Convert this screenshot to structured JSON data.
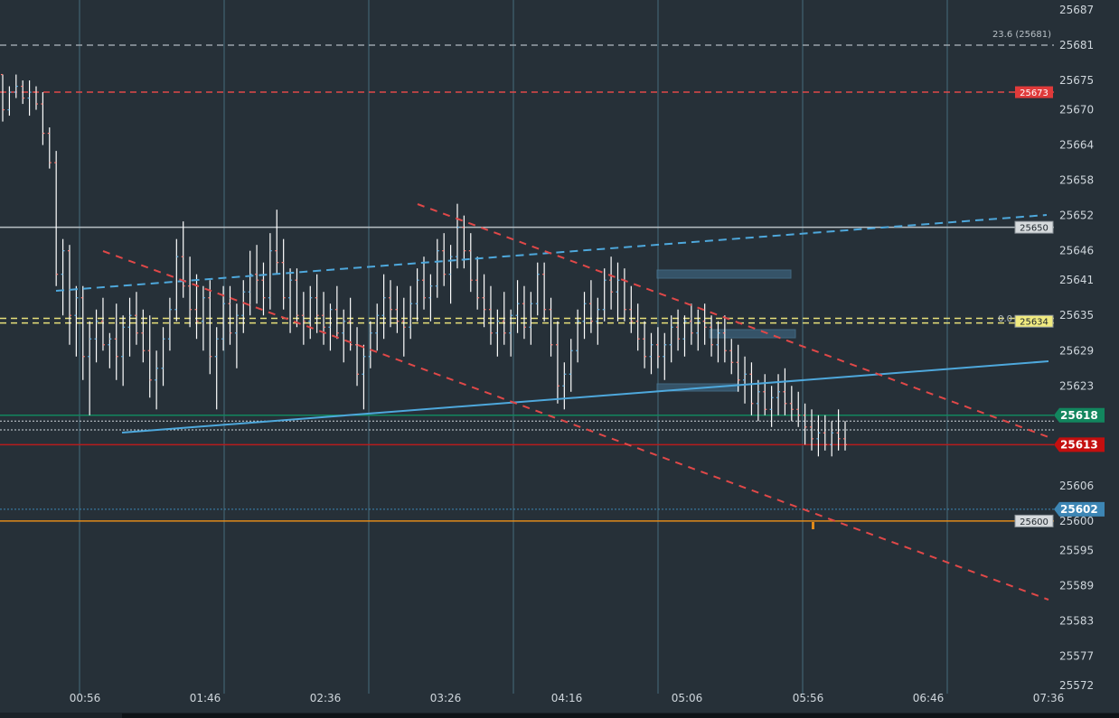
{
  "chart_data": {
    "type": "candlestick",
    "y_ticks": [
      "25687",
      "25681",
      "25675",
      "25670",
      "25664",
      "25658",
      "25652",
      "25646",
      "25641",
      "25635",
      "25629",
      "25623",
      "25618",
      "25613",
      "25606",
      "25602",
      "25600",
      "25595",
      "25589",
      "25583",
      "25577",
      "25572"
    ],
    "y_range": [
      25572,
      25687
    ],
    "x_ticks": [
      "00:56",
      "01:46",
      "02:36",
      "03:26",
      "04:16",
      "05:06",
      "05:56",
      "06:46",
      "07:36"
    ],
    "grid": "vertical only",
    "price_labels": [
      {
        "name": "resistance-label",
        "value": "25673",
        "color": "#e03a3a"
      },
      {
        "name": "level-label",
        "value": "25650",
        "color": "#d6dadd"
      },
      {
        "name": "fib-zero-label",
        "value": "25634",
        "color": "#f0ea80"
      },
      {
        "name": "bid-label",
        "value": "25618",
        "color": "#12865e"
      },
      {
        "name": "last-price-label",
        "value": "25613",
        "color": "#c40f0f"
      },
      {
        "name": "blue-level-label",
        "value": "25602",
        "color": "#3d86b5"
      },
      {
        "name": "round-level-label",
        "value": "25600",
        "color": "#d6dadd"
      }
    ],
    "fib_labels": [
      {
        "name": "fib-23-label",
        "text": "23.6 (25681)"
      },
      {
        "name": "fib-0-label",
        "text": "0.0"
      }
    ],
    "horizontal_levels": [
      {
        "price": 25681,
        "color": "#9aa3aa",
        "style": "dash"
      },
      {
        "price": 25673,
        "color": "#e04848",
        "style": "dash"
      },
      {
        "price": 25650,
        "color": "#b9c0c5",
        "style": "solid"
      },
      {
        "price": 25634.5,
        "color": "#e8e07a",
        "style": "dash"
      },
      {
        "price": 25633.7,
        "color": "#e8e07a",
        "style": "dash"
      },
      {
        "price": 25618,
        "color": "#12865e",
        "style": "solid"
      },
      {
        "price": 25617,
        "color": "#cfd6dc",
        "style": "dot"
      },
      {
        "price": 25615.5,
        "color": "#cfd6dc",
        "style": "dot"
      },
      {
        "price": 25613,
        "color": "#b71c1c",
        "style": "solid"
      },
      {
        "price": 25602,
        "color": "#3d86b5",
        "style": "dot"
      },
      {
        "price": 25600,
        "color": "#e08a1a",
        "style": "solid"
      }
    ],
    "candles": [
      [
        25676,
        25676,
        25668,
        25670
      ],
      [
        25670,
        25674,
        25669,
        25673
      ],
      [
        25673,
        25676,
        25672,
        25674
      ],
      [
        25674,
        25675,
        25671,
        25672
      ],
      [
        25672,
        25675,
        25669,
        25673
      ],
      [
        25673,
        25674,
        25670,
        25671
      ],
      [
        25671,
        25673,
        25664,
        25666
      ],
      [
        25666,
        25667,
        25660,
        25661
      ],
      [
        25661,
        25663,
        25640,
        25642
      ],
      [
        25642,
        25648,
        25635,
        25646
      ],
      [
        25646,
        25647,
        25630,
        25635
      ],
      [
        25635,
        25640,
        25628,
        25638
      ],
      [
        25638,
        25640,
        25624,
        25628
      ],
      [
        25628,
        25634,
        25618,
        25631
      ],
      [
        25631,
        25636,
        25627,
        25634
      ],
      [
        25634,
        25638,
        25629,
        25630
      ],
      [
        25630,
        25632,
        25626,
        25631
      ],
      [
        25631,
        25637,
        25624,
        25628
      ],
      [
        25628,
        25635,
        25623,
        25633
      ],
      [
        25633,
        25638,
        25628,
        25635
      ],
      [
        25635,
        25639,
        25630,
        25632
      ],
      [
        25632,
        25636,
        25627,
        25629
      ],
      [
        25629,
        25635,
        25621,
        25624
      ],
      [
        25624,
        25629,
        25619,
        25626
      ],
      [
        25626,
        25633,
        25623,
        25631
      ],
      [
        25631,
        25638,
        25629,
        25636
      ],
      [
        25636,
        25648,
        25634,
        25645
      ],
      [
        25645,
        25651,
        25638,
        25640
      ],
      [
        25640,
        25645,
        25633,
        25636
      ],
      [
        25636,
        25642,
        25631,
        25634
      ],
      [
        25634,
        25640,
        25629,
        25638
      ],
      [
        25638,
        25641,
        25625,
        25628
      ],
      [
        25628,
        25633,
        25619,
        25631
      ],
      [
        25631,
        25640,
        25629,
        25637
      ],
      [
        25637,
        25640,
        25630,
        25632
      ],
      [
        25632,
        25637,
        25626,
        25635
      ],
      [
        25635,
        25641,
        25632,
        25639
      ],
      [
        25639,
        25646,
        25635,
        25642
      ],
      [
        25642,
        25647,
        25637,
        25641
      ],
      [
        25641,
        25644,
        25635,
        25638
      ],
      [
        25638,
        25649,
        25636,
        25646
      ],
      [
        25646,
        25653,
        25642,
        25644
      ],
      [
        25644,
        25648,
        25636,
        25638
      ],
      [
        25638,
        25643,
        25632,
        25641
      ],
      [
        25641,
        25643,
        25633,
        25635
      ],
      [
        25635,
        25639,
        25630,
        25634
      ],
      [
        25634,
        25640,
        25631,
        25638
      ],
      [
        25638,
        25642,
        25632,
        25635
      ],
      [
        25635,
        25639,
        25630,
        25633
      ],
      [
        25633,
        25637,
        25629,
        25636
      ],
      [
        25636,
        25640,
        25631,
        25632
      ],
      [
        25632,
        25636,
        25627,
        25634
      ],
      [
        25634,
        25638,
        25629,
        25630
      ],
      [
        25630,
        25633,
        25623,
        25625
      ],
      [
        25625,
        25630,
        25619,
        25628
      ],
      [
        25628,
        25634,
        25626,
        25632
      ],
      [
        25632,
        25637,
        25629,
        25635
      ],
      [
        25635,
        25642,
        25631,
        25638
      ],
      [
        25638,
        25641,
        25633,
        25636
      ],
      [
        25636,
        25640,
        25632,
        25634
      ],
      [
        25634,
        25638,
        25628,
        25633
      ],
      [
        25633,
        25640,
        25631,
        25637
      ],
      [
        25637,
        25643,
        25634,
        25641
      ],
      [
        25641,
        25645,
        25636,
        25638
      ],
      [
        25638,
        25642,
        25634,
        25640
      ],
      [
        25640,
        25648,
        25638,
        25646
      ],
      [
        25646,
        25649,
        25640,
        25642
      ],
      [
        25642,
        25647,
        25637,
        25645
      ],
      [
        25645,
        25654,
        25643,
        25650
      ],
      [
        25650,
        25652,
        25643,
        25646
      ],
      [
        25646,
        25649,
        25639,
        25641
      ],
      [
        25641,
        25645,
        25636,
        25638
      ],
      [
        25638,
        25642,
        25633,
        25636
      ],
      [
        25636,
        25640,
        25630,
        25632
      ],
      [
        25632,
        25636,
        25628,
        25634
      ],
      [
        25634,
        25639,
        25630,
        25632
      ],
      [
        25632,
        25636,
        25628,
        25635
      ],
      [
        25635,
        25641,
        25632,
        25637
      ],
      [
        25637,
        25640,
        25631,
        25633
      ],
      [
        25633,
        25639,
        25630,
        25637
      ],
      [
        25637,
        25644,
        25635,
        25642
      ],
      [
        25642,
        25644,
        25634,
        25636
      ],
      [
        25636,
        25638,
        25628,
        25630
      ],
      [
        25630,
        25634,
        25620,
        25623
      ],
      [
        25623,
        25627,
        25619,
        25625
      ],
      [
        25625,
        25631,
        25622,
        25629
      ],
      [
        25629,
        25636,
        25627,
        25634
      ],
      [
        25634,
        25639,
        25631,
        25637
      ],
      [
        25637,
        25641,
        25632,
        25634
      ],
      [
        25634,
        25638,
        25630,
        25636
      ],
      [
        25636,
        25643,
        25634,
        25641
      ],
      [
        25641,
        25645,
        25636,
        25639
      ],
      [
        25639,
        25644,
        25634,
        25641
      ],
      [
        25641,
        25643,
        25634,
        25636
      ],
      [
        25636,
        25640,
        25632,
        25634
      ],
      [
        25634,
        25637,
        25629,
        25631
      ],
      [
        25631,
        25634,
        25626,
        25628
      ],
      [
        25628,
        25632,
        25625,
        25630
      ],
      [
        25630,
        25633,
        25626,
        25628
      ],
      [
        25628,
        25632,
        25624,
        25630
      ],
      [
        25630,
        25635,
        25627,
        25633
      ],
      [
        25633,
        25636,
        25629,
        25631
      ],
      [
        25631,
        25635,
        25628,
        25634
      ],
      [
        25634,
        25637,
        25630,
        25632
      ],
      [
        25632,
        25636,
        25629,
        25634
      ],
      [
        25634,
        25637,
        25630,
        25633
      ],
      [
        25633,
        25635,
        25628,
        25630
      ],
      [
        25630,
        25634,
        25627,
        25632
      ],
      [
        25632,
        25635,
        25627,
        25629
      ],
      [
        25629,
        25631,
        25625,
        25627
      ],
      [
        25627,
        25630,
        25622,
        25624
      ],
      [
        25624,
        25628,
        25620,
        25625
      ],
      [
        25625,
        25627,
        25618,
        25620
      ],
      [
        25620,
        25624,
        25617,
        25622
      ],
      [
        25622,
        25625,
        25618,
        25619
      ],
      [
        25619,
        25623,
        25616,
        25621
      ],
      [
        25621,
        25625,
        25618,
        25622
      ],
      [
        25622,
        25626,
        25618,
        25620
      ],
      [
        25620,
        25623,
        25617,
        25619
      ],
      [
        25619,
        25622,
        25616,
        25618
      ],
      [
        25618,
        25620,
        25613,
        25616
      ],
      [
        25616,
        25619,
        25612,
        25614
      ],
      [
        25614,
        25618,
        25611,
        25615
      ],
      [
        25615,
        25618,
        25612,
        25613
      ],
      [
        25613,
        25617,
        25611,
        25615
      ],
      [
        25615,
        25619,
        25612,
        25614
      ],
      [
        25614,
        25617,
        25612,
        25613
      ]
    ]
  }
}
